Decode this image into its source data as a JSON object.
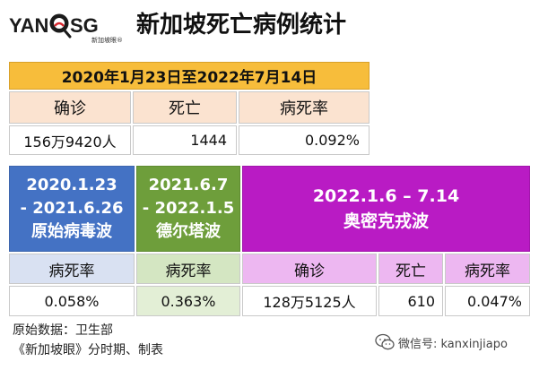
{
  "header": {
    "logo_left": "YAN",
    "logo_right": "SG",
    "logo_subtext": "新加坡眼®",
    "title": "新加坡死亡病例统计"
  },
  "summary": {
    "date_range": "2020年1月23日至2022年7月14日",
    "labels": [
      "确诊",
      "死亡",
      "病死率"
    ],
    "values": [
      "156万9420人",
      "1444",
      "0.092%"
    ]
  },
  "waves": {
    "original": {
      "line1": "2020.1.23",
      "line2": "- 2021.6.26",
      "name": "原始病毒波",
      "rate_label": "病死率",
      "rate_value": "0.058%",
      "color": "#4472c4"
    },
    "delta": {
      "line1": "2021.6.7",
      "line2": "- 2022.1.5",
      "name": "德尔塔波",
      "rate_label": "病死率",
      "rate_value": "0.363%",
      "color": "#6e9e3b"
    },
    "omicron": {
      "line1": "2022.1.6 – 7.14",
      "name": "奥密克戎波",
      "labels": [
        "确诊",
        "死亡",
        "病死率"
      ],
      "values": [
        "128万5125人",
        "610",
        "0.047%"
      ],
      "color": "#b91bc4"
    }
  },
  "footer": {
    "source": "原始数据：卫生部",
    "credit": "《新加坡眼》分时期、制表",
    "wechat": "微信号: kanxinjiapo"
  },
  "colors": {
    "top_header": "#f7bd3b",
    "top_label_bg": "#fbe3d0"
  }
}
